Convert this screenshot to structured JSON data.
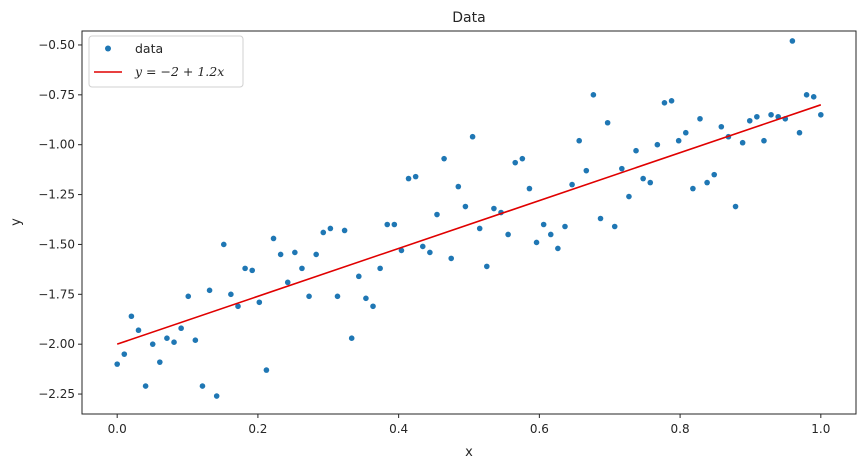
{
  "chart_data": {
    "type": "scatter",
    "title": "Data",
    "xlabel": "x",
    "ylabel": "y",
    "xlim": [
      -0.05,
      1.05
    ],
    "ylim": [
      -2.35,
      -0.43
    ],
    "xticks": [
      0.0,
      0.2,
      0.4,
      0.6,
      0.8,
      1.0
    ],
    "xtick_labels": [
      "0.0",
      "0.2",
      "0.4",
      "0.6",
      "0.8",
      "1.0"
    ],
    "yticks": [
      -2.25,
      -2.0,
      -1.75,
      -1.5,
      -1.25,
      -1.0,
      -0.75,
      -0.5
    ],
    "ytick_labels": [
      "−2.25",
      "−2.00",
      "−1.75",
      "−1.50",
      "−1.25",
      "−1.00",
      "−0.75",
      "−0.50"
    ],
    "grid": false,
    "legend_position": "top-left",
    "colors": {
      "points": "#1f77b4",
      "line": "#e00000"
    },
    "series": [
      {
        "name": "data",
        "kind": "scatter",
        "x": [
          0.0,
          0.0101,
          0.0202,
          0.0303,
          0.0404,
          0.0505,
          0.0606,
          0.0707,
          0.0808,
          0.0909,
          0.101,
          0.1111,
          0.1212,
          0.1313,
          0.1414,
          0.1515,
          0.1616,
          0.1717,
          0.1818,
          0.1919,
          0.202,
          0.2121,
          0.2222,
          0.2323,
          0.2424,
          0.2525,
          0.2626,
          0.2727,
          0.2828,
          0.2929,
          0.303,
          0.3131,
          0.3232,
          0.3333,
          0.3434,
          0.3535,
          0.3636,
          0.3737,
          0.3838,
          0.3939,
          0.404,
          0.4141,
          0.4242,
          0.4343,
          0.4444,
          0.4545,
          0.4646,
          0.4747,
          0.4848,
          0.4949,
          0.5051,
          0.5152,
          0.5253,
          0.5354,
          0.5455,
          0.5556,
          0.5657,
          0.5758,
          0.5859,
          0.596,
          0.6061,
          0.6162,
          0.6263,
          0.6364,
          0.6465,
          0.6566,
          0.6667,
          0.6768,
          0.6869,
          0.697,
          0.7071,
          0.7172,
          0.7273,
          0.7374,
          0.7475,
          0.7576,
          0.7677,
          0.7778,
          0.7879,
          0.798,
          0.8081,
          0.8182,
          0.8283,
          0.8384,
          0.8485,
          0.8586,
          0.8687,
          0.8788,
          0.8889,
          0.899,
          0.9091,
          0.9192,
          0.9293,
          0.9394,
          0.9495,
          0.9596,
          0.9697,
          0.9798,
          0.9899,
          1.0
        ],
        "y": [
          -2.1,
          -2.05,
          -1.86,
          -1.93,
          -2.21,
          -2.0,
          -2.09,
          -1.97,
          -1.99,
          -1.92,
          -1.76,
          -1.98,
          -2.21,
          -1.73,
          -2.26,
          -1.5,
          -1.75,
          -1.81,
          -1.62,
          -1.63,
          -1.79,
          -2.13,
          -1.47,
          -1.55,
          -1.69,
          -1.54,
          -1.62,
          -1.76,
          -1.55,
          -1.44,
          -1.42,
          -1.76,
          -1.43,
          -1.97,
          -1.66,
          -1.77,
          -1.81,
          -1.62,
          -1.4,
          -1.4,
          -1.53,
          -1.17,
          -1.16,
          -1.51,
          -1.54,
          -1.35,
          -1.07,
          -1.57,
          -1.21,
          -1.31,
          -0.96,
          -1.42,
          -1.61,
          -1.32,
          -1.34,
          -1.45,
          -1.09,
          -1.07,
          -1.22,
          -1.49,
          -1.4,
          -1.45,
          -1.52,
          -1.41,
          -1.2,
          -0.98,
          -1.13,
          -0.75,
          -1.37,
          -0.89,
          -1.41,
          -1.12,
          -1.26,
          -1.03,
          -1.17,
          -1.19,
          -1.0,
          -0.79,
          -0.78,
          -0.98,
          -0.94,
          -1.22,
          -0.87,
          -1.19,
          -1.15,
          -0.91,
          -0.96,
          -1.31,
          -0.99,
          -0.88,
          -0.86,
          -0.98,
          -0.85,
          -0.86,
          -0.87,
          -0.48,
          -0.94,
          -0.75,
          -0.76,
          -0.85
        ]
      },
      {
        "name": "y = −2 + 1.2x",
        "kind": "line",
        "x": [
          0.0,
          1.0
        ],
        "y": [
          -2.0,
          -0.8
        ]
      }
    ]
  }
}
